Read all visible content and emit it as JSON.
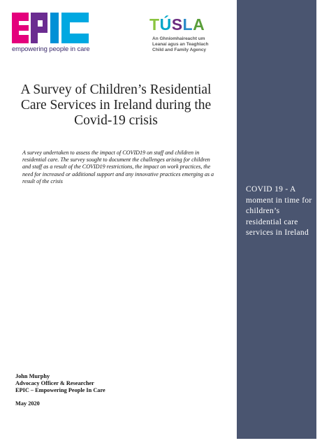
{
  "logos": {
    "epic": {
      "name": "EPIC",
      "tagline": "empowering people in care",
      "colors": [
        "#e4007c",
        "#6b2c91",
        "#009fe3",
        "#00a8e1"
      ]
    },
    "tusla": {
      "name": "TUSLA",
      "subtitle_lines": [
        "An Ghníomhaireacht um",
        "Leanaí agus an Teaghlach",
        "Child and Family Agency"
      ]
    }
  },
  "document": {
    "title": "A Survey of Children’s Residential Care Services in Ireland during the Covid-19 crisis",
    "abstract": "A survey undertaken to assess the impact of COVID19 on staff and children in residential care. The survey sought to document the challenges arising for children and staff as a result of the COVID19 restrictions, the impact on work practices, the need for increased or additional support and any innovative practices emerging as a result of the crisis",
    "author": {
      "name": "John Murphy",
      "role": "Advocacy Officer & Researcher",
      "organisation": "EPIC – Empowering People In Care",
      "date": "May 2020"
    }
  },
  "sidebar": {
    "text": "COVID 19 - A moment in time for children’s residential care services in Ireland",
    "background": "#4a5570"
  }
}
